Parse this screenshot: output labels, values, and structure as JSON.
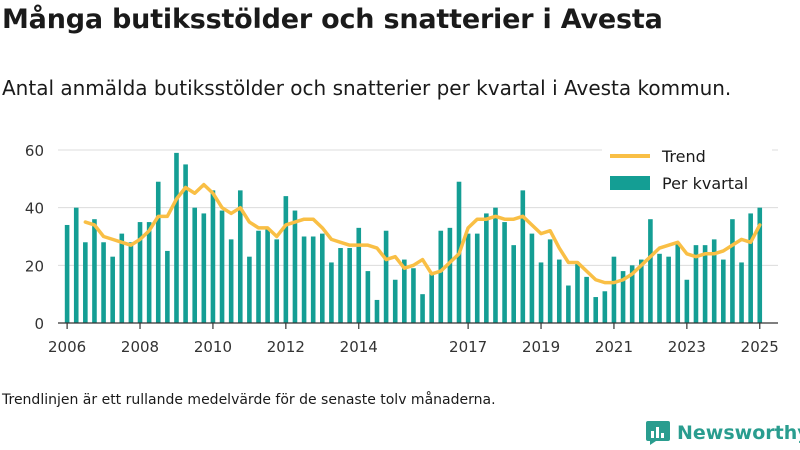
{
  "title": "Många butiksstölder och snatterier i Avesta",
  "subtitle": "Antal anmälda butiksstölder och snatterier per kvartal i Avesta kommun.",
  "footnote": "Trendlinjen är ett rullande medelvärde för de senaste tolv månaderna.",
  "brand": "Newsworthy",
  "chart_data": {
    "type": "bar",
    "ylim": [
      0,
      60
    ],
    "yticks": [
      0,
      20,
      40,
      60
    ],
    "xlim": [
      2005.75,
      2025.5
    ],
    "xticks": [
      "2006",
      "2008",
      "2010",
      "2012",
      "2014",
      "2017",
      "2019",
      "2021",
      "2023",
      "2025"
    ],
    "xtick_positions": [
      2006,
      2008,
      2010,
      2012,
      2014,
      2017,
      2019,
      2021,
      2023,
      2025
    ],
    "grid": true,
    "legend_position": "top-right",
    "colors": {
      "bar": "#149e94",
      "trend": "#f9bf45",
      "grid": "#dcdcdc",
      "axis": "#333333"
    },
    "series": [
      {
        "name": "Per kvartal",
        "kind": "bar",
        "x": [
          2006.0,
          2006.25,
          2006.5,
          2006.75,
          2007.0,
          2007.25,
          2007.5,
          2007.75,
          2008.0,
          2008.25,
          2008.5,
          2008.75,
          2009.0,
          2009.25,
          2009.5,
          2009.75,
          2010.0,
          2010.25,
          2010.5,
          2010.75,
          2011.0,
          2011.25,
          2011.5,
          2011.75,
          2012.0,
          2012.25,
          2012.5,
          2012.75,
          2013.0,
          2013.25,
          2013.5,
          2013.75,
          2014.0,
          2014.25,
          2014.5,
          2014.75,
          2015.0,
          2015.25,
          2015.5,
          2015.75,
          2016.0,
          2016.25,
          2016.5,
          2016.75,
          2017.0,
          2017.25,
          2017.5,
          2017.75,
          2018.0,
          2018.25,
          2018.5,
          2018.75,
          2019.0,
          2019.25,
          2019.5,
          2019.75,
          2020.0,
          2020.25,
          2020.5,
          2020.75,
          2021.0,
          2021.25,
          2021.5,
          2021.75,
          2022.0,
          2022.25,
          2022.5,
          2022.75,
          2023.0,
          2023.25,
          2023.5,
          2023.75,
          2024.0,
          2024.25,
          2024.5,
          2024.75,
          2025.0
        ],
        "values": [
          34,
          40,
          28,
          36,
          28,
          23,
          31,
          28,
          35,
          35,
          49,
          25,
          59,
          55,
          40,
          38,
          46,
          39,
          29,
          46,
          23,
          32,
          33,
          29,
          44,
          39,
          30,
          30,
          31,
          21,
          26,
          26,
          33,
          18,
          8,
          32,
          15,
          22,
          19,
          10,
          17,
          32,
          33,
          49,
          31,
          31,
          38,
          40,
          35,
          27,
          46,
          31,
          21,
          29,
          22,
          13,
          21,
          16,
          9,
          11,
          23,
          18,
          20,
          22,
          36,
          24,
          23,
          28,
          15,
          27,
          27,
          29,
          22,
          36,
          21,
          38,
          40
        ]
      },
      {
        "name": "Trend",
        "kind": "line",
        "x": [
          2006.5,
          2006.75,
          2007.0,
          2007.25,
          2007.5,
          2007.75,
          2008.0,
          2008.25,
          2008.5,
          2008.75,
          2009.0,
          2009.25,
          2009.5,
          2009.75,
          2010.0,
          2010.25,
          2010.5,
          2010.75,
          2011.0,
          2011.25,
          2011.5,
          2011.75,
          2012.0,
          2012.25,
          2012.5,
          2012.75,
          2013.0,
          2013.25,
          2013.5,
          2013.75,
          2014.0,
          2014.25,
          2014.5,
          2014.75,
          2015.0,
          2015.25,
          2015.5,
          2015.75,
          2016.0,
          2016.25,
          2016.5,
          2016.75,
          2017.0,
          2017.25,
          2017.5,
          2017.75,
          2018.0,
          2018.25,
          2018.5,
          2018.75,
          2019.0,
          2019.25,
          2019.5,
          2019.75,
          2020.0,
          2020.25,
          2020.5,
          2020.75,
          2021.0,
          2021.25,
          2021.5,
          2021.75,
          2022.0,
          2022.25,
          2022.5,
          2022.75,
          2023.0,
          2023.25,
          2023.5,
          2023.75,
          2024.0,
          2024.25,
          2024.5,
          2024.75,
          2025.0
        ],
        "values": [
          35,
          34,
          30,
          29,
          28,
          27,
          29,
          32,
          37,
          37,
          43,
          47,
          45,
          48,
          45,
          40,
          38,
          40,
          35,
          33,
          33,
          30,
          34,
          35,
          36,
          36,
          33,
          29,
          28,
          27,
          27,
          27,
          26,
          22,
          23,
          19,
          20,
          22,
          17,
          18,
          21,
          24,
          33,
          36,
          36,
          37,
          36,
          36,
          37,
          34,
          31,
          32,
          26,
          21,
          21,
          18,
          15,
          14,
          14,
          15,
          17,
          20,
          23,
          26,
          27,
          28,
          24,
          23,
          24,
          24,
          25,
          27,
          29,
          28,
          34
        ]
      }
    ]
  }
}
